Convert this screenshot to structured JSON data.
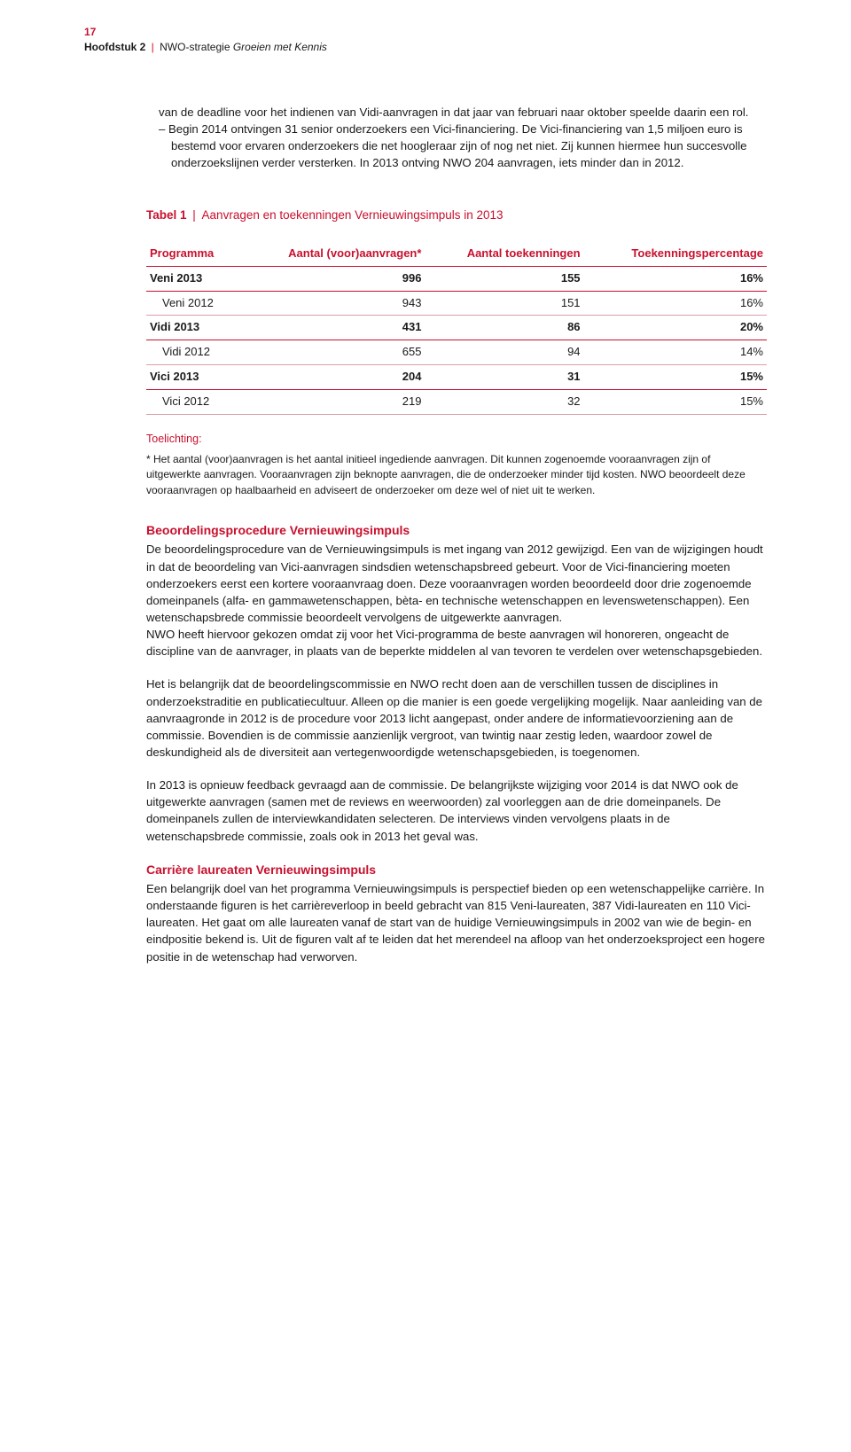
{
  "header": {
    "page_number": "17",
    "chapter": "Hoofdstuk 2",
    "strategy": "NWO-strategie",
    "strategy_title": "Groeien met Kennis"
  },
  "intro": {
    "line1": "van de deadline voor het indienen van Vidi-aanvragen in dat jaar van februari naar oktober speelde daarin een rol.",
    "bullet_prefix": "–  ",
    "line2": "Begin 2014 ontvingen 31 senior onderzoekers een Vici-financiering. De Vici-financiering van 1,5 miljoen euro is bestemd voor ervaren onderzoekers die net hoogleraar zijn of nog net niet. Zij kunnen hiermee hun succesvolle onderzoekslijnen verder versterken. In 2013 ontving NWO 204 aanvragen, iets minder dan in 2012."
  },
  "table": {
    "caption_label": "Tabel 1",
    "caption_text": "Aanvragen en toekenningen Vernieuwingsimpuls in 2013",
    "headers": {
      "programma": "Programma",
      "aanvragen": "Aantal (voor)aanvragen*",
      "toekenningen": "Aantal toekenningen",
      "percentage": "Toekenningspercentage"
    },
    "rows": [
      {
        "type": "main",
        "programma": "Veni 2013",
        "aanvragen": "996",
        "toekenningen": "155",
        "percentage": "16%"
      },
      {
        "type": "sub",
        "programma": "Veni 2012",
        "aanvragen": "943",
        "toekenningen": "151",
        "percentage": "16%"
      },
      {
        "type": "main",
        "programma": "Vidi 2013",
        "aanvragen": "431",
        "toekenningen": "86",
        "percentage": "20%"
      },
      {
        "type": "sub",
        "programma": "Vidi 2012",
        "aanvragen": "655",
        "toekenningen": "94",
        "percentage": "14%"
      },
      {
        "type": "main",
        "programma": "Vici 2013",
        "aanvragen": "204",
        "toekenningen": "31",
        "percentage": "15%"
      },
      {
        "type": "sub",
        "programma": "Vici 2012",
        "aanvragen": "219",
        "toekenningen": "32",
        "percentage": "15%"
      }
    ]
  },
  "toelichting": {
    "head": "Toelichting:",
    "body": "* Het aantal (voor)aanvragen is het aantal initieel ingediende aanvragen. Dit kunnen zogenoemde vooraanvragen zijn of uitgewerkte aanvragen. Vooraanvragen zijn beknopte aanvragen, die de onderzoeker minder tijd kosten. NWO beoordeelt deze vooraanvragen op haalbaarheid en adviseert de onderzoeker om deze wel of niet uit te werken."
  },
  "section1": {
    "head": "Beoordelingsprocedure Vernieuwingsimpuls",
    "p1": "De beoordelingsprocedure van de Vernieuwingsimpuls is met ingang van 2012 gewijzigd. Een van de wijzigingen houdt in dat de beoordeling van Vici-aanvragen sindsdien wetenschapsbreed gebeurt. Voor de Vici-financiering moeten onderzoekers eerst een kortere vooraanvraag doen. Deze vooraanvragen worden beoordeeld door drie zogenoemde domeinpanels (alfa- en gammawetenschappen, bèta- en technische wetenschappen en levenswetenschappen). Een wetenschapsbrede commissie beoordeelt vervolgens de uitgewerkte aanvragen.",
    "p2": "NWO heeft hiervoor gekozen omdat zij voor het Vici-programma de beste aanvragen wil honoreren, ongeacht de discipline van de aanvrager, in plaats van de beperkte middelen al van tevoren te verdelen over wetenschapsgebieden.",
    "p3": "Het is belangrijk dat de beoordelingscommissie en NWO recht doen aan de verschillen tussen de disciplines in onderzoekstraditie en publicatiecultuur. Alleen op die manier is een goede vergelijking mogelijk. Naar aanleiding van de aanvraagronde in 2012 is de procedure voor 2013 licht aangepast, onder andere de informatievoorziening aan de commissie. Bovendien is de commissie aanzienlijk vergroot, van twintig naar zestig leden, waardoor zowel de deskundigheid als de diversiteit aan vertegenwoordigde wetenschapsgebieden, is toegenomen.",
    "p4": "In 2013 is opnieuw feedback gevraagd aan de commissie. De belangrijkste wijziging voor 2014 is dat NWO ook de uitgewerkte aanvragen (samen met de reviews en weerwoorden) zal voorleggen aan de drie domeinpanels. De domeinpanels zullen de interviewkandidaten selecteren. De interviews vinden vervolgens plaats in de wetenschapsbrede commissie, zoals ook in 2013 het geval was."
  },
  "section2": {
    "head": "Carrière laureaten Vernieuwingsimpuls",
    "p1": "Een belangrijk doel van het programma Vernieuwingsimpuls is perspectief bieden op een wetenschappelijke carrière. In onderstaande figuren is het carrièreverloop in beeld gebracht van 815 Veni-laureaten, 387 Vidi-laureaten en 110 Vici-laureaten. Het gaat om alle laureaten vanaf de start van de huidige Vernieuwingsimpuls in 2002 van wie de begin- en eindpositie bekend is. Uit de figuren valt af te leiden dat het merendeel na afloop van het onderzoeksproject een hogere positie in de wetenschap had verworven."
  }
}
